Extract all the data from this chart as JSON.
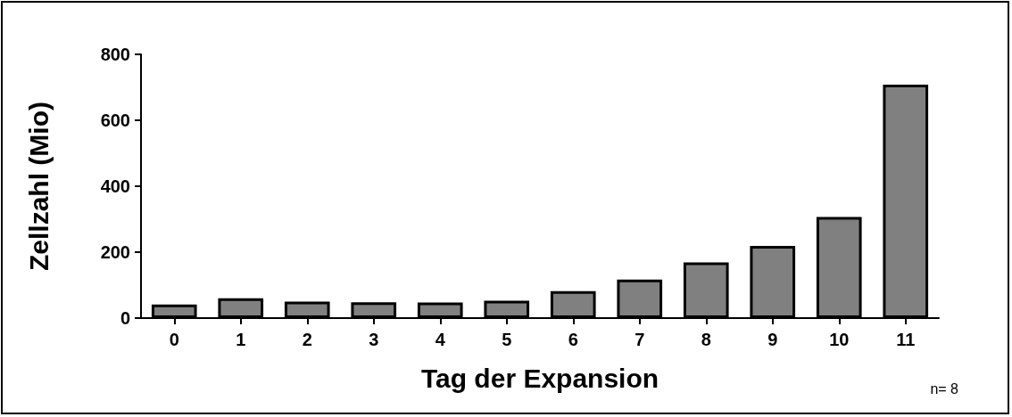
{
  "chart_data": {
    "type": "bar",
    "xlabel": "Tag der Expansion",
    "ylabel": "Zellzahl (Mio)",
    "categories": [
      "0",
      "1",
      "2",
      "3",
      "4",
      "5",
      "6",
      "7",
      "8",
      "9",
      "10",
      "11"
    ],
    "values": [
      41,
      60,
      50,
      48,
      47,
      53,
      82,
      117,
      169,
      219,
      307,
      708
    ],
    "color": "#808080",
    "ylim": [
      0,
      800
    ],
    "yticks": [
      0,
      200,
      400,
      600,
      800
    ],
    "grid": false,
    "annotations": [
      "n= 8"
    ]
  }
}
